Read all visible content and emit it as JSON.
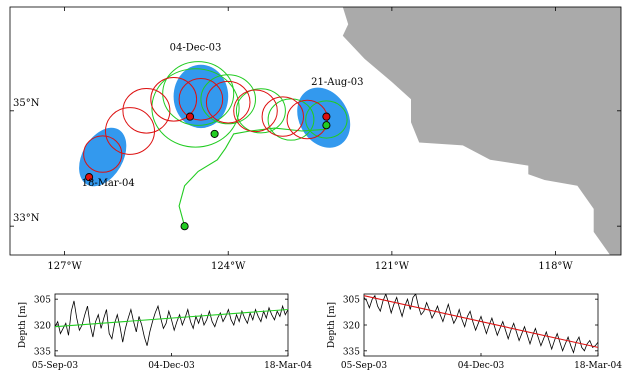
{
  "chart_data": [
    {
      "type": "map",
      "x_range": [
        -128.0,
        -116.8
      ],
      "y_range": [
        32.5,
        36.8
      ],
      "x_ticks": [
        {
          "value": -127,
          "label": "127°W"
        },
        {
          "value": -124,
          "label": "124°W"
        },
        {
          "value": -121,
          "label": "121°W"
        },
        {
          "value": -118,
          "label": "118°W"
        }
      ],
      "y_ticks": [
        {
          "value": 35,
          "label": "35°N"
        },
        {
          "value": 33,
          "label": "33°N"
        }
      ],
      "colors": {
        "land": "#aaaaaa",
        "ellipse": "#3399ee",
        "green": "#22cc22",
        "red": "#dd1111"
      },
      "annotations": [
        {
          "text": "04-Dec-03",
          "lon": -124.6,
          "lat": 36.05
        },
        {
          "text": "21-Aug-03",
          "lon": -122.0,
          "lat": 35.45
        },
        {
          "text": "18-Mar-04",
          "lon": -126.2,
          "lat": 33.7
        }
      ],
      "land_outline": [
        [
          -121.9,
          36.8
        ],
        [
          -116.8,
          36.8
        ],
        [
          -116.8,
          32.5
        ],
        [
          -117.0,
          32.5
        ],
        [
          -117.3,
          32.9
        ],
        [
          -117.3,
          33.3
        ],
        [
          -117.6,
          33.7
        ],
        [
          -118.2,
          33.8
        ],
        [
          -118.5,
          33.9
        ],
        [
          -118.5,
          34.05
        ],
        [
          -119.2,
          34.15
        ],
        [
          -119.7,
          34.4
        ],
        [
          -120.5,
          34.45
        ],
        [
          -120.65,
          34.8
        ],
        [
          -120.65,
          35.2
        ],
        [
          -121.0,
          35.5
        ],
        [
          -121.5,
          35.9
        ],
        [
          -121.9,
          36.3
        ],
        [
          -121.8,
          36.5
        ],
        [
          -121.9,
          36.8
        ]
      ],
      "filled_ellipses": [
        {
          "lon": -124.5,
          "lat": 35.25,
          "rx": 0.5,
          "ry": 0.55,
          "rot": 0
        },
        {
          "lon": -122.25,
          "lat": 34.88,
          "rx": 0.45,
          "ry": 0.55,
          "rot": -30
        },
        {
          "lon": -126.3,
          "lat": 34.2,
          "rx": 0.37,
          "ry": 0.55,
          "rot": 30
        }
      ],
      "green_track": [
        [
          -124.8,
          33.0
        ],
        [
          -124.9,
          33.35
        ],
        [
          -124.8,
          33.7
        ],
        [
          -124.55,
          33.95
        ],
        [
          -124.2,
          34.15
        ],
        [
          -124.05,
          34.35
        ],
        [
          -123.9,
          34.6
        ],
        [
          -123.6,
          34.65
        ],
        [
          -123.15,
          34.7
        ],
        [
          -122.65,
          34.65
        ],
        [
          -122.2,
          34.68
        ]
      ],
      "green_circles": [
        {
          "lon": -124.55,
          "lat": 35.3,
          "r": 0.65
        },
        {
          "lon": -124.6,
          "lat": 35.05,
          "r": 0.8
        },
        {
          "lon": -124.0,
          "lat": 35.2,
          "r": 0.5
        },
        {
          "lon": -123.4,
          "lat": 35.0,
          "r": 0.45
        },
        {
          "lon": -122.85,
          "lat": 34.85,
          "r": 0.42
        },
        {
          "lon": -122.2,
          "lat": 34.85,
          "r": 0.38
        }
      ],
      "red_circles": [
        {
          "lon": -126.3,
          "lat": 34.25,
          "r": 0.35
        },
        {
          "lon": -125.8,
          "lat": 34.65,
          "r": 0.45
        },
        {
          "lon": -125.5,
          "lat": 35.0,
          "r": 0.43
        },
        {
          "lon": -125.0,
          "lat": 35.2,
          "r": 0.42
        },
        {
          "lon": -124.5,
          "lat": 35.2,
          "r": 0.4
        },
        {
          "lon": -124.0,
          "lat": 35.15,
          "r": 0.4
        },
        {
          "lon": -123.5,
          "lat": 35.0,
          "r": 0.4
        },
        {
          "lon": -123.0,
          "lat": 34.9,
          "r": 0.38
        },
        {
          "lon": -122.55,
          "lat": 34.85,
          "r": 0.37
        }
      ],
      "markers": [
        {
          "lon": -124.8,
          "lat": 33.0,
          "color": "green"
        },
        {
          "lon": -124.25,
          "lat": 34.6,
          "color": "green"
        },
        {
          "lon": -122.2,
          "lat": 34.75,
          "color": "green"
        },
        {
          "lon": -124.7,
          "lat": 34.9,
          "color": "red"
        },
        {
          "lon": -122.2,
          "lat": 34.9,
          "color": "red"
        },
        {
          "lon": -126.55,
          "lat": 33.85,
          "color": "red"
        }
      ]
    },
    {
      "type": "line",
      "ylabel": "Depth [m]",
      "x_ticks": [
        "05-Sep-03",
        "04-Dec-03",
        "18-Mar-04"
      ],
      "y_ticks": [
        305,
        320,
        335
      ],
      "ylim": [
        302,
        338
      ],
      "x_range_days": [
        0,
        195
      ],
      "series": [
        {
          "values": [
            321,
            318,
            325,
            322,
            319,
            326,
            312,
            306,
            316,
            323,
            320,
            314,
            309,
            320,
            327,
            318,
            314,
            322,
            316,
            311,
            325,
            328,
            319,
            314,
            321,
            330,
            322,
            316,
            311,
            318,
            324,
            315,
            320,
            327,
            332,
            324,
            318,
            313,
            309,
            316,
            322,
            319,
            312,
            317,
            323,
            318,
            314,
            320,
            316,
            311,
            318,
            322,
            315,
            319,
            314,
            320,
            317,
            312,
            318,
            321,
            316,
            313,
            318,
            315,
            311,
            317,
            320,
            314,
            318,
            312,
            316,
            319,
            313,
            317,
            311,
            315,
            318,
            312,
            316,
            310,
            314,
            317,
            312,
            315,
            309,
            314,
            311
          ]
        },
        {
          "type": "trend",
          "values": [
            321,
            311
          ],
          "color": "green"
        }
      ]
    },
    {
      "type": "line",
      "ylabel": "Depth [m]",
      "x_ticks": [
        "05-Sep-03",
        "04-Dec-03",
        "18-Mar-04"
      ],
      "y_ticks": [
        305,
        320,
        335
      ],
      "ylim": [
        302,
        338
      ],
      "x_range_days": [
        0,
        195
      ],
      "series": [
        {
          "values": [
            304,
            306,
            310,
            305,
            303,
            309,
            312,
            306,
            302,
            307,
            313,
            308,
            304,
            310,
            315,
            309,
            305,
            311,
            304,
            302,
            309,
            314,
            312,
            307,
            311,
            316,
            313,
            309,
            314,
            318,
            313,
            308,
            314,
            319,
            316,
            311,
            317,
            321,
            315,
            312,
            318,
            323,
            319,
            315,
            320,
            325,
            320,
            316,
            321,
            326,
            322,
            318,
            323,
            328,
            323,
            319,
            324,
            329,
            325,
            321,
            326,
            331,
            326,
            322,
            327,
            332,
            328,
            324,
            329,
            334,
            329,
            325,
            330,
            335,
            331,
            327,
            332,
            336,
            330,
            327,
            333,
            335,
            331,
            329,
            333,
            332,
            330
          ]
        },
        {
          "type": "trend",
          "values": [
            303,
            333
          ],
          "color": "red"
        }
      ]
    }
  ]
}
